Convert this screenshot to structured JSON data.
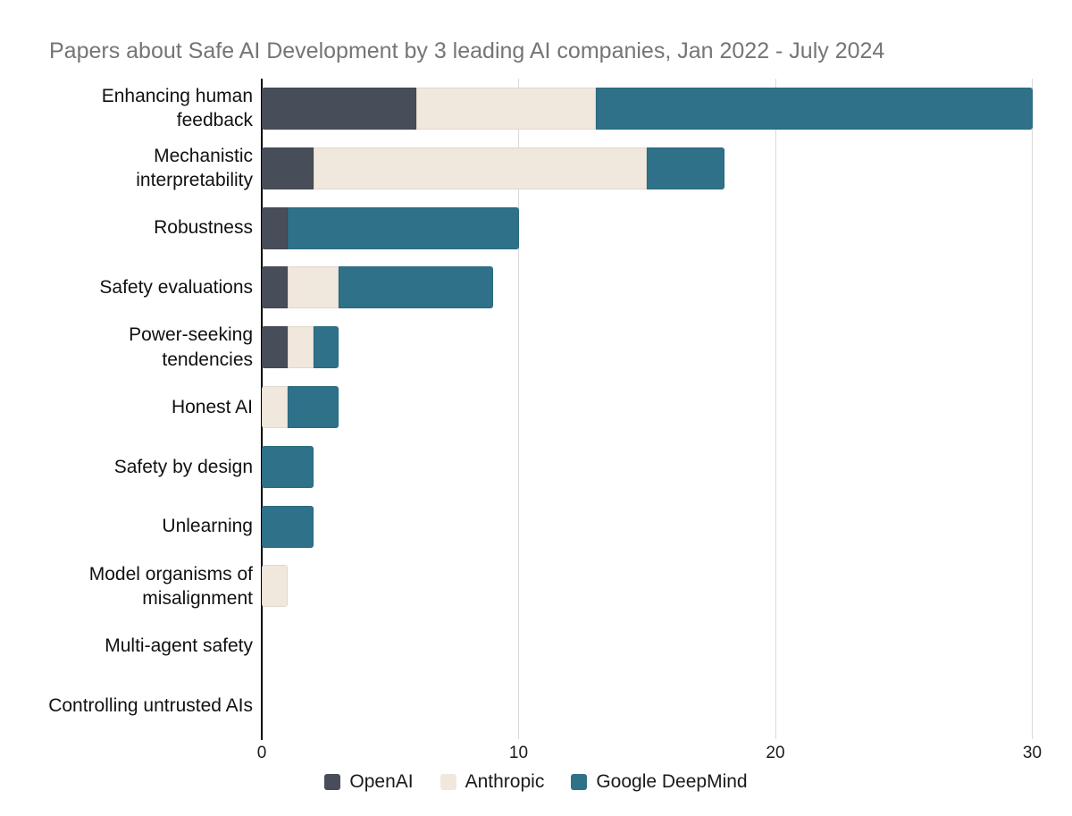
{
  "title": "Papers about Safe AI Development by 3 leading AI companies, Jan 2022 - July 2024",
  "chart_data": {
    "type": "bar",
    "orientation": "horizontal",
    "stacked": true,
    "title": "Papers about Safe AI Development by 3 leading AI companies, Jan 2022 - July 2024",
    "categories": [
      "Enhancing human feedback",
      "Mechanistic interpretability",
      "Robustness",
      "Safety evaluations",
      "Power-seeking tendencies",
      "Honest AI",
      "Safety by design",
      "Unlearning",
      "Model organisms of misalignment",
      "Multi-agent safety",
      "Controlling untrusted AIs"
    ],
    "series": [
      {
        "name": "OpenAI",
        "color": "#474d59",
        "values": [
          6,
          2,
          1,
          1,
          1,
          0,
          0,
          0,
          0,
          0,
          0
        ]
      },
      {
        "name": "Anthropic",
        "color": "#f1e8dd",
        "values": [
          7,
          13,
          0,
          2,
          1,
          1,
          0,
          0,
          1,
          0,
          0
        ]
      },
      {
        "name": "Google DeepMind",
        "color": "#2e7189",
        "values": [
          17,
          3,
          9,
          6,
          1,
          2,
          2,
          2,
          0,
          0,
          0
        ]
      }
    ],
    "totals": [
      30,
      18,
      10,
      9,
      3,
      3,
      2,
      2,
      1,
      0,
      0
    ],
    "xlabel": "",
    "ylabel": "",
    "xlim": [
      0,
      30
    ],
    "xticks": [
      0,
      10,
      20,
      30
    ],
    "grid": "vertical",
    "legend_position": "bottom"
  },
  "colors": {
    "title_text": "#757575",
    "label_text": "#111111",
    "tick_text": "#1a1a1a",
    "gridline": "#d9d9d9",
    "axis": "#000000",
    "background": "#ffffff"
  }
}
